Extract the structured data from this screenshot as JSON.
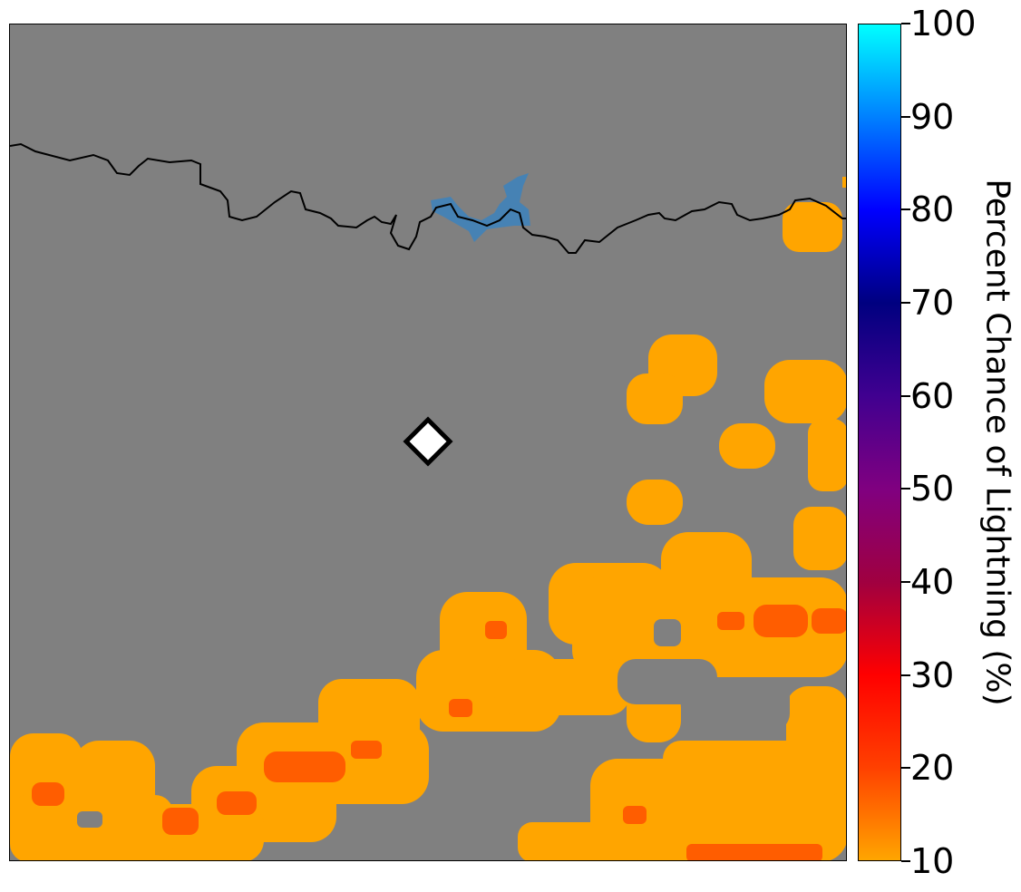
{
  "map": {
    "background_color": "#808080",
    "lightning_color_low": "#ffa500",
    "lightning_color_mid": "#ff4500",
    "water_color": "#4682b4",
    "border_color": "#000000",
    "marker": {
      "shape": "diamond",
      "fill": "#ffffff",
      "stroke": "#000000"
    }
  },
  "colorbar": {
    "label": "Percent Chance of Lightning (%)",
    "min": 10,
    "max": 100,
    "ticks": [
      "10",
      "20",
      "30",
      "40",
      "50",
      "60",
      "70",
      "80",
      "90",
      "100"
    ],
    "stops": [
      "#ffa500",
      "#ff4000",
      "#ff0000",
      "#a00040",
      "#800080",
      "#400090",
      "#000080",
      "#0000ff",
      "#0080ff",
      "#00ffff"
    ]
  }
}
